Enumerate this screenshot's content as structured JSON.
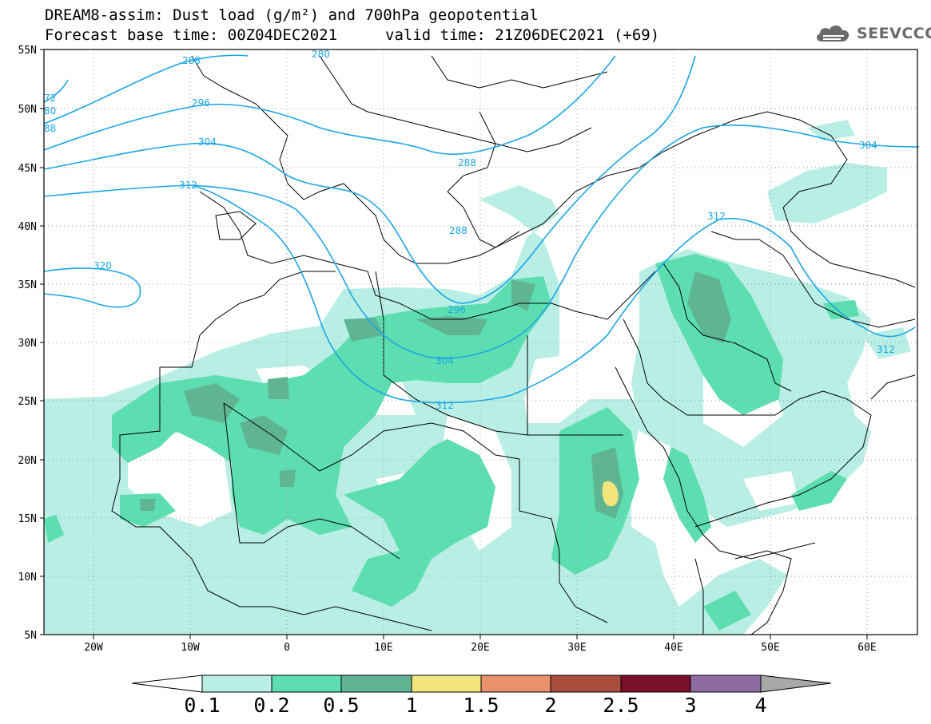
{
  "header": {
    "title": "DREAM8-assim: Dust load (g/m²) and 700hPa geopotential",
    "base_time": "Forecast base time: 00Z04DEC2021",
    "valid_time": "valid time: 21Z06DEC2021 (+69)"
  },
  "logo": {
    "text": "SEEVCCC",
    "icon": "cloud-logo-icon",
    "color": "#6a6a6a"
  },
  "axes": {
    "lat_labels": [
      "55N",
      "50N",
      "45N",
      "40N",
      "35N",
      "30N",
      "25N",
      "20N",
      "15N",
      "10N",
      "5N"
    ],
    "lon_labels": [
      "20W",
      "10W",
      "0",
      "10E",
      "20E",
      "30E",
      "40E",
      "50E",
      "60E"
    ]
  },
  "contours": {
    "color": "#1aa6e6",
    "labels": [
      "288",
      "280",
      "296",
      "304",
      "312",
      "72",
      "80",
      "88",
      "288",
      "288",
      "296",
      "304",
      "312",
      "320",
      "312",
      "304",
      "312"
    ]
  },
  "colorbar": {
    "ticks": [
      "0.1",
      "0.2",
      "0.5",
      "1",
      "1.5",
      "2",
      "2.5",
      "3",
      "4"
    ],
    "colors": [
      "#ffffff",
      "#b8eee4",
      "#5ddeb1",
      "#5fb593",
      "#f2e57c",
      "#e8916b",
      "#a84c3d",
      "#7a0f2a",
      "#8e6aa1",
      "#a8a8a8"
    ]
  },
  "dust_colors": {
    "light": "#b8eee4",
    "medium": "#5ddeb1",
    "dark": "#5fb593",
    "yellow": "#f2e57c"
  }
}
